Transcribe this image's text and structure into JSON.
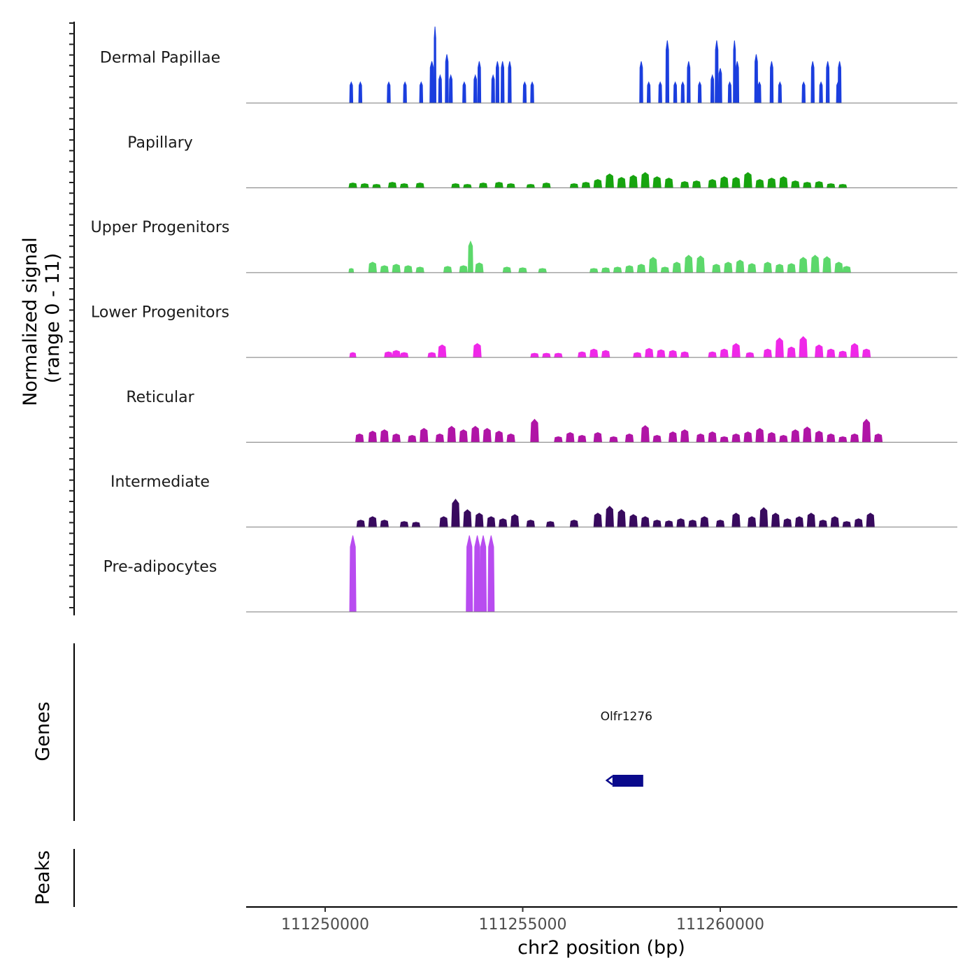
{
  "chart_data": {
    "type": "area",
    "title": "",
    "y_axis_title_line1": "Normalized signal",
    "y_axis_title_line2": "(range 0 - 11)",
    "ylim": [
      0,
      11
    ],
    "xlabel": "chr2 position (bp)",
    "xlim": [
      111248000,
      111266000
    ],
    "x_ticks": [
      {
        "value": 111250000,
        "label": "111250000"
      },
      {
        "value": 111255000,
        "label": "111255000"
      },
      {
        "value": 111260000,
        "label": "111260000"
      }
    ],
    "tracks": [
      {
        "name": "Dermal Papillae",
        "color": "#1b3ede",
        "peaks": [
          [
            111250660,
            40,
            3
          ],
          [
            111250890,
            40,
            3
          ],
          [
            111251610,
            40,
            3
          ],
          [
            111252020,
            40,
            3
          ],
          [
            111252430,
            40,
            3
          ],
          [
            111252700,
            50,
            6
          ],
          [
            111252780,
            25,
            11
          ],
          [
            111252910,
            40,
            4
          ],
          [
            111253080,
            40,
            7
          ],
          [
            111253180,
            40,
            4
          ],
          [
            111253520,
            40,
            3
          ],
          [
            111253800,
            40,
            4
          ],
          [
            111253900,
            40,
            6
          ],
          [
            111254250,
            40,
            4
          ],
          [
            111254360,
            40,
            6
          ],
          [
            111254490,
            40,
            6
          ],
          [
            111254670,
            40,
            6
          ],
          [
            111255050,
            40,
            3
          ],
          [
            111255240,
            40,
            3
          ],
          [
            111258000,
            40,
            6
          ],
          [
            111258190,
            40,
            3
          ],
          [
            111258480,
            40,
            3
          ],
          [
            111258660,
            40,
            9
          ],
          [
            111258860,
            40,
            3
          ],
          [
            111259050,
            40,
            3
          ],
          [
            111259200,
            40,
            6
          ],
          [
            111259480,
            40,
            3
          ],
          [
            111259800,
            40,
            4
          ],
          [
            111259910,
            40,
            9
          ],
          [
            111260000,
            40,
            5
          ],
          [
            111260240,
            40,
            3
          ],
          [
            111260360,
            30,
            9
          ],
          [
            111260430,
            40,
            6
          ],
          [
            111260910,
            40,
            7
          ],
          [
            111260990,
            40,
            3
          ],
          [
            111261300,
            40,
            6
          ],
          [
            111261510,
            40,
            3
          ],
          [
            111262110,
            40,
            3
          ],
          [
            111262340,
            40,
            6
          ],
          [
            111262550,
            40,
            3
          ],
          [
            111262720,
            40,
            6
          ],
          [
            111262980,
            40,
            3
          ],
          [
            111263020,
            40,
            6
          ]
        ]
      },
      {
        "name": "Papillary",
        "color": "#17a40f",
        "peaks": [
          [
            111250700,
            100,
            0.7
          ],
          [
            111251000,
            100,
            0.6
          ],
          [
            111251300,
            100,
            0.5
          ],
          [
            111251700,
            100,
            0.8
          ],
          [
            111252000,
            100,
            0.6
          ],
          [
            111252400,
            100,
            0.7
          ],
          [
            111253300,
            100,
            0.6
          ],
          [
            111253600,
            100,
            0.5
          ],
          [
            111254000,
            100,
            0.7
          ],
          [
            111254400,
            100,
            0.8
          ],
          [
            111254700,
            100,
            0.6
          ],
          [
            111255200,
            100,
            0.5
          ],
          [
            111255600,
            100,
            0.7
          ],
          [
            111256300,
            100,
            0.6
          ],
          [
            111256600,
            100,
            0.8
          ],
          [
            111256900,
            100,
            1.2
          ],
          [
            111257200,
            100,
            2.0
          ],
          [
            111257500,
            100,
            1.5
          ],
          [
            111257800,
            100,
            1.8
          ],
          [
            111258100,
            100,
            2.2
          ],
          [
            111258400,
            100,
            1.6
          ],
          [
            111258700,
            100,
            1.4
          ],
          [
            111259100,
            100,
            0.9
          ],
          [
            111259400,
            100,
            1.0
          ],
          [
            111259800,
            100,
            1.2
          ],
          [
            111260100,
            100,
            1.6
          ],
          [
            111260400,
            100,
            1.5
          ],
          [
            111260700,
            100,
            2.2
          ],
          [
            111261000,
            100,
            1.2
          ],
          [
            111261300,
            100,
            1.4
          ],
          [
            111261600,
            100,
            1.6
          ],
          [
            111261900,
            100,
            1.0
          ],
          [
            111262200,
            100,
            0.8
          ],
          [
            111262500,
            100,
            0.9
          ],
          [
            111262800,
            100,
            0.6
          ],
          [
            111263100,
            100,
            0.5
          ]
        ]
      },
      {
        "name": "Upper Progenitors",
        "color": "#5cd86b",
        "peaks": [
          [
            111250660,
            60,
            0.6
          ],
          [
            111251200,
            100,
            1.5
          ],
          [
            111251500,
            100,
            1.0
          ],
          [
            111251800,
            100,
            1.2
          ],
          [
            111252100,
            100,
            1.0
          ],
          [
            111252400,
            100,
            0.8
          ],
          [
            111253100,
            100,
            0.9
          ],
          [
            111253500,
            100,
            1.0
          ],
          [
            111253680,
            60,
            4.5
          ],
          [
            111253900,
            100,
            1.4
          ],
          [
            111254600,
            100,
            0.8
          ],
          [
            111255000,
            100,
            0.7
          ],
          [
            111255500,
            100,
            0.6
          ],
          [
            111256800,
            100,
            0.6
          ],
          [
            111257100,
            100,
            0.7
          ],
          [
            111257400,
            100,
            0.8
          ],
          [
            111257700,
            100,
            1.0
          ],
          [
            111258000,
            100,
            1.2
          ],
          [
            111258300,
            100,
            2.2
          ],
          [
            111258600,
            100,
            0.8
          ],
          [
            111258900,
            100,
            1.5
          ],
          [
            111259200,
            100,
            2.5
          ],
          [
            111259500,
            100,
            2.4
          ],
          [
            111259900,
            100,
            1.2
          ],
          [
            111260200,
            100,
            1.5
          ],
          [
            111260500,
            100,
            1.8
          ],
          [
            111260800,
            100,
            1.3
          ],
          [
            111261200,
            100,
            1.5
          ],
          [
            111261500,
            100,
            1.2
          ],
          [
            111261800,
            100,
            1.3
          ],
          [
            111262100,
            100,
            2.2
          ],
          [
            111262400,
            100,
            2.5
          ],
          [
            111262700,
            100,
            2.3
          ],
          [
            111263000,
            100,
            1.5
          ],
          [
            111263200,
            100,
            0.9
          ]
        ]
      },
      {
        "name": "Lower Progenitors",
        "color": "#ef28e8",
        "peaks": [
          [
            111250700,
            80,
            0.7
          ],
          [
            111251600,
            100,
            0.8
          ],
          [
            111251800,
            100,
            1.0
          ],
          [
            111252000,
            100,
            0.7
          ],
          [
            111252700,
            100,
            0.7
          ],
          [
            111252960,
            100,
            1.8
          ],
          [
            111253850,
            100,
            2.0
          ],
          [
            111255300,
            100,
            0.6
          ],
          [
            111255600,
            100,
            0.6
          ],
          [
            111255900,
            100,
            0.6
          ],
          [
            111256500,
            100,
            0.8
          ],
          [
            111256800,
            100,
            1.2
          ],
          [
            111257100,
            100,
            1.0
          ],
          [
            111257900,
            100,
            0.7
          ],
          [
            111258200,
            100,
            1.3
          ],
          [
            111258500,
            100,
            1.1
          ],
          [
            111258800,
            100,
            1.0
          ],
          [
            111259100,
            100,
            0.8
          ],
          [
            111259800,
            100,
            0.8
          ],
          [
            111260100,
            100,
            1.2
          ],
          [
            111260400,
            100,
            2.0
          ],
          [
            111260750,
            100,
            0.7
          ],
          [
            111261200,
            100,
            1.2
          ],
          [
            111261500,
            100,
            2.8
          ],
          [
            111261800,
            100,
            1.5
          ],
          [
            111262100,
            100,
            3.0
          ],
          [
            111262500,
            100,
            1.8
          ],
          [
            111262800,
            100,
            1.2
          ],
          [
            111263100,
            100,
            0.9
          ],
          [
            111263400,
            100,
            2.0
          ],
          [
            111263700,
            100,
            1.2
          ]
        ]
      },
      {
        "name": "Reticular",
        "color": "#b014a6",
        "peaks": [
          [
            111250870,
            100,
            1.2
          ],
          [
            111251200,
            100,
            1.6
          ],
          [
            111251500,
            100,
            1.8
          ],
          [
            111251800,
            100,
            1.2
          ],
          [
            111252200,
            100,
            1.0
          ],
          [
            111252500,
            100,
            2.0
          ],
          [
            111252900,
            100,
            1.2
          ],
          [
            111253200,
            100,
            2.3
          ],
          [
            111253500,
            100,
            1.8
          ],
          [
            111253800,
            100,
            2.3
          ],
          [
            111254100,
            100,
            2.0
          ],
          [
            111254400,
            100,
            1.6
          ],
          [
            111254700,
            100,
            1.2
          ],
          [
            111255300,
            100,
            3.3
          ],
          [
            111255900,
            100,
            0.8
          ],
          [
            111256200,
            100,
            1.4
          ],
          [
            111256500,
            100,
            1.0
          ],
          [
            111256900,
            100,
            1.4
          ],
          [
            111257300,
            100,
            0.8
          ],
          [
            111257700,
            100,
            1.2
          ],
          [
            111258100,
            100,
            2.4
          ],
          [
            111258400,
            100,
            1.0
          ],
          [
            111258800,
            100,
            1.5
          ],
          [
            111259100,
            100,
            1.8
          ],
          [
            111259500,
            100,
            1.2
          ],
          [
            111259800,
            100,
            1.5
          ],
          [
            111260100,
            100,
            0.8
          ],
          [
            111260400,
            100,
            1.2
          ],
          [
            111260700,
            100,
            1.5
          ],
          [
            111261000,
            100,
            2.0
          ],
          [
            111261300,
            100,
            1.4
          ],
          [
            111261600,
            100,
            1.0
          ],
          [
            111261900,
            100,
            1.8
          ],
          [
            111262200,
            100,
            2.2
          ],
          [
            111262500,
            100,
            1.6
          ],
          [
            111262800,
            100,
            1.2
          ],
          [
            111263100,
            100,
            0.8
          ],
          [
            111263400,
            100,
            1.2
          ],
          [
            111263700,
            100,
            3.3
          ],
          [
            111264000,
            100,
            1.2
          ]
        ]
      },
      {
        "name": "Intermediate",
        "color": "#380a5e",
        "peaks": [
          [
            111250900,
            100,
            1.0
          ],
          [
            111251200,
            100,
            1.5
          ],
          [
            111251500,
            100,
            1.0
          ],
          [
            111252000,
            100,
            0.8
          ],
          [
            111252300,
            100,
            0.7
          ],
          [
            111253000,
            100,
            1.5
          ],
          [
            111253300,
            100,
            4.0
          ],
          [
            111253600,
            100,
            2.5
          ],
          [
            111253900,
            100,
            2.0
          ],
          [
            111254200,
            100,
            1.5
          ],
          [
            111254500,
            100,
            1.2
          ],
          [
            111254800,
            100,
            1.8
          ],
          [
            111255200,
            100,
            1.0
          ],
          [
            111255700,
            100,
            0.8
          ],
          [
            111256300,
            100,
            1.0
          ],
          [
            111256900,
            100,
            2.0
          ],
          [
            111257200,
            100,
            3.0
          ],
          [
            111257500,
            100,
            2.5
          ],
          [
            111257800,
            100,
            1.8
          ],
          [
            111258100,
            100,
            1.5
          ],
          [
            111258400,
            100,
            1.0
          ],
          [
            111258700,
            100,
            0.9
          ],
          [
            111259000,
            100,
            1.2
          ],
          [
            111259300,
            100,
            1.0
          ],
          [
            111259600,
            100,
            1.5
          ],
          [
            111260000,
            100,
            1.0
          ],
          [
            111260400,
            100,
            2.0
          ],
          [
            111260800,
            100,
            1.5
          ],
          [
            111261100,
            100,
            2.8
          ],
          [
            111261400,
            100,
            2.0
          ],
          [
            111261700,
            100,
            1.2
          ],
          [
            111262000,
            100,
            1.5
          ],
          [
            111262300,
            100,
            2.0
          ],
          [
            111262600,
            100,
            1.0
          ],
          [
            111262900,
            100,
            1.5
          ],
          [
            111263200,
            100,
            0.8
          ],
          [
            111263500,
            100,
            1.2
          ],
          [
            111263800,
            100,
            2.0
          ]
        ]
      },
      {
        "name": "Pre-adipocytes",
        "color": "#b84cf0",
        "peaks": [
          [
            111250700,
            80,
            11
          ],
          [
            111253650,
            80,
            11
          ],
          [
            111253850,
            80,
            11
          ],
          [
            111254000,
            80,
            11
          ],
          [
            111254200,
            80,
            11
          ]
        ]
      }
    ]
  },
  "genes_panel": {
    "title": "Genes",
    "genes": [
      {
        "name": "Olfr1276",
        "start": 111257200,
        "end": 111258050,
        "strand": "-",
        "color": "#0a0a8c"
      }
    ]
  },
  "peaks_panel": {
    "title": "Peaks"
  }
}
